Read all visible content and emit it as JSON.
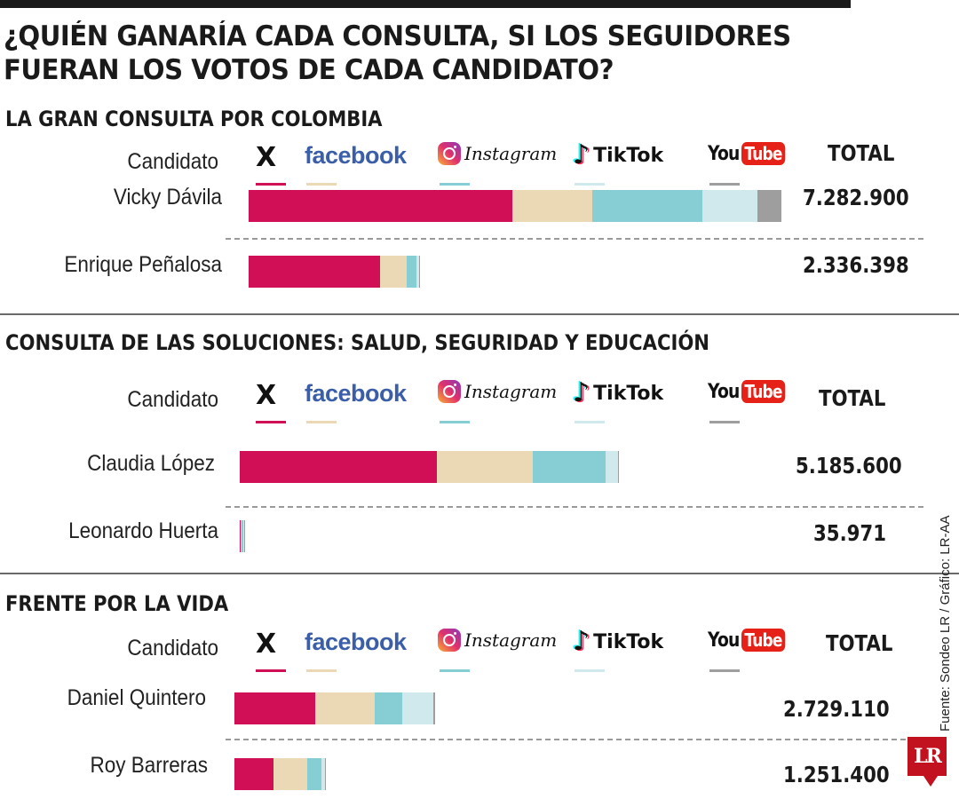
{
  "headline": {
    "line1": "¿QUIÉN GANARÍA CADA CONSULTA, SI LOS SEGUIDORES",
    "line2": "FUERAN LOS VOTOS DE CADA CANDIDATO?"
  },
  "labels": {
    "candidato": "Candidato",
    "total": "TOTAL",
    "x": "X",
    "facebook": "facebook",
    "instagram": "Instagram",
    "tiktok": "TikTok",
    "youtube_you": "You",
    "youtube_tube": "Tube"
  },
  "colors": {
    "x": "#d10f57",
    "facebook": "#ead9b4",
    "instagram": "#87cdd4",
    "tiktok": "#cfe9ec",
    "youtube": "#9e9e9e"
  },
  "source": "Fuente: Sondeo LR / Gráfico: LR-AA",
  "logo": "LR",
  "chart_data": [
    {
      "type": "bar",
      "title": "LA GRAN CONSULTA POR COLOMBIA",
      "stacked": true,
      "orientation": "horizontal",
      "series_names": [
        "X",
        "Facebook",
        "Instagram",
        "TikTok",
        "YouTube"
      ],
      "candidates": [
        {
          "name": "Vicky Dávila",
          "total": "7.282.900",
          "values": [
            3600000,
            1100000,
            1500000,
            750000,
            332900
          ]
        },
        {
          "name": "Enrique Peñalosa",
          "total": "2.336.398",
          "values": [
            1800000,
            360000,
            140000,
            26398,
            10000
          ]
        }
      ]
    },
    {
      "type": "bar",
      "title": "CONSULTA DE LAS SOLUCIONES: SALUD, SEGURIDAD Y EDUCACIÓN",
      "stacked": true,
      "orientation": "horizontal",
      "series_names": [
        "X",
        "Facebook",
        "Instagram",
        "TikTok",
        "YouTube"
      ],
      "candidates": [
        {
          "name": "Claudia López",
          "total": "5.185.600",
          "values": [
            2700000,
            1300000,
            1000000,
            165600,
            20000
          ]
        },
        {
          "name": "Leonardo Huerta",
          "total": "35.971",
          "values": [
            12000,
            9000,
            8000,
            5000,
            1971
          ]
        }
      ]
    },
    {
      "type": "bar",
      "title": "FRENTE POR LA VIDA",
      "stacked": true,
      "orientation": "horizontal",
      "series_names": [
        "X",
        "Facebook",
        "Instagram",
        "TikTok",
        "YouTube"
      ],
      "candidates": [
        {
          "name": "Daniel Quintero",
          "total": "2.729.110",
          "values": [
            1100000,
            820000,
            370000,
            434110,
            5000
          ]
        },
        {
          "name": "Roy Barreras",
          "total": "1.251.400",
          "values": [
            540000,
            450000,
            200000,
            50000,
            11400
          ]
        }
      ]
    }
  ]
}
